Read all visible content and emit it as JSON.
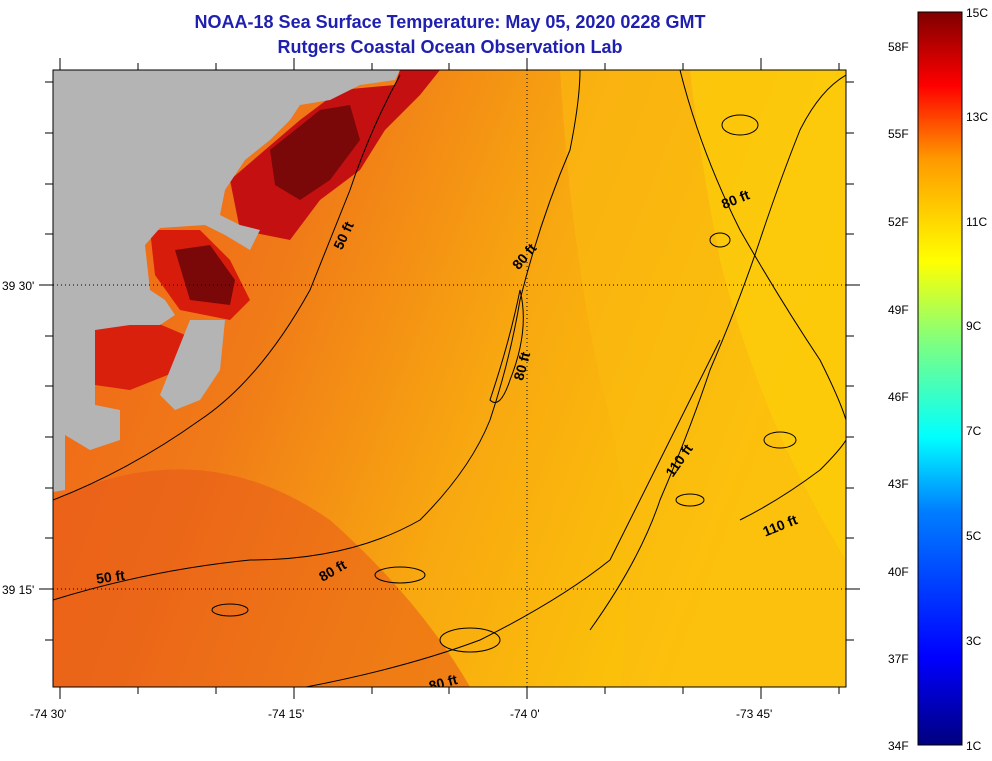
{
  "title": "NOAA-18 Sea Surface Temperature:  May 05, 2020 0228 GMT",
  "subtitle": "Rutgers Coastal Ocean Observation Lab",
  "map": {
    "land_color": "#b4b4b4",
    "lon_labels": [
      "-74 30'",
      "-74 15'",
      "-74 0'",
      "-73 45'"
    ],
    "lat_labels": [
      "39 30'",
      "39 15'"
    ],
    "contour_labels": [
      "50 ft",
      "50 ft",
      "80 ft",
      "80 ft",
      "80 ft",
      "80 ft",
      "80 ft",
      "110 ft",
      "110 ft"
    ]
  },
  "colorbar": {
    "celsius_labels": [
      "15C",
      "13C",
      "11C",
      "9C",
      "7C",
      "5C",
      "3C",
      "1C"
    ],
    "fahrenheit_labels": [
      "58F",
      "55F",
      "52F",
      "49F",
      "46F",
      "43F",
      "40F",
      "37F",
      "34F"
    ],
    "colors": [
      "#00007f",
      "#0000ff",
      "#007fff",
      "#00ffff",
      "#7fff7f",
      "#ffff00",
      "#ff7f00",
      "#ff0000",
      "#7f0000"
    ]
  }
}
